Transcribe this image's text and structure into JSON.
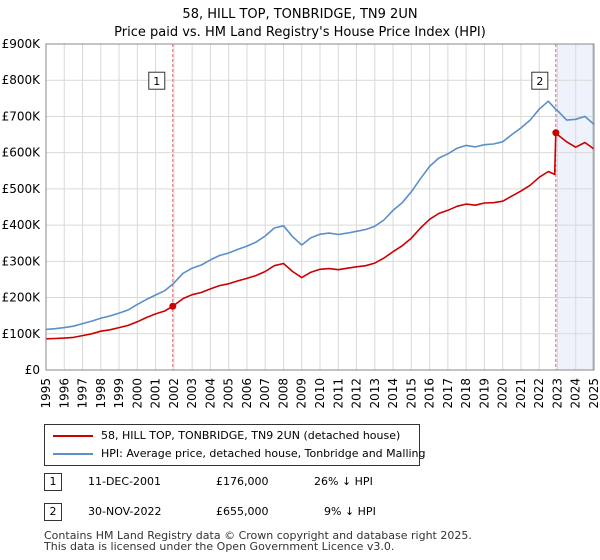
{
  "title_line1": "58, HILL TOP, TONBRIDGE, TN9 2UN",
  "title_line2": "Price paid vs. HM Land Registry's House Price Index (HPI)",
  "legend": {
    "property": "58, HILL TOP, TONBRIDGE, TN9 2UN (detached house)",
    "hpi": "HPI: Average price, detached house, Tonbridge and Malling"
  },
  "sales": [
    {
      "num": "1",
      "date": "11-DEC-2001",
      "price": "£176,000",
      "diff": "26% ↓ HPI"
    },
    {
      "num": "2",
      "date": "30-NOV-2022",
      "price": "£655,000",
      "diff": "9% ↓ HPI"
    }
  ],
  "footer": {
    "line1": "Contains HM Land Registry data © Crown copyright and database right 2025.",
    "line2": "This data is licensed under the Open Government Licence v3.0."
  },
  "colors": {
    "property": "#cc0000",
    "hpi": "#5b8fc9",
    "sale_line": "#e06666",
    "shade": "#dde6f6",
    "grid": "#d9d9d9"
  },
  "chart_data": {
    "type": "line",
    "x_ticks": [
      "1995",
      "1996",
      "1997",
      "1998",
      "1999",
      "2000",
      "2001",
      "2002",
      "2003",
      "2004",
      "2005",
      "2006",
      "2007",
      "2008",
      "2009",
      "2010",
      "2011",
      "2012",
      "2013",
      "2014",
      "2015",
      "2016",
      "2017",
      "2018",
      "2019",
      "2020",
      "2021",
      "2022",
      "2023",
      "2024",
      "2025"
    ],
    "y_ticks": [
      0,
      100000,
      200000,
      300000,
      400000,
      500000,
      600000,
      700000,
      800000,
      900000
    ],
    "y_tick_labels": [
      "£0",
      "£100K",
      "£200K",
      "£300K",
      "£400K",
      "£500K",
      "£600K",
      "£700K",
      "£800K",
      "£900K"
    ],
    "xlim": [
      1995,
      2025
    ],
    "ylim": [
      0,
      900000
    ],
    "sales": [
      {
        "label": "1",
        "x": 2001.94,
        "y": 176000
      },
      {
        "label": "2",
        "x": 2022.91,
        "y": 655000
      }
    ],
    "series": [
      {
        "name": "HPI: Average price, detached house, Tonbridge and Malling",
        "x": [
          1995,
          1995.5,
          1996,
          1996.5,
          1997,
          1997.5,
          1998,
          1998.5,
          1999,
          1999.5,
          2000,
          2000.5,
          2001,
          2001.5,
          2002,
          2002.5,
          2003,
          2003.5,
          2004,
          2004.5,
          2005,
          2005.5,
          2006,
          2006.5,
          2007,
          2007.5,
          2008,
          2008.5,
          2009,
          2009.5,
          2010,
          2010.5,
          2011,
          2011.5,
          2012,
          2012.5,
          2013,
          2013.5,
          2014,
          2014.5,
          2015,
          2015.5,
          2016,
          2016.5,
          2017,
          2017.5,
          2018,
          2018.5,
          2019,
          2019.5,
          2020,
          2020.5,
          2021,
          2021.5,
          2022,
          2022.5,
          2022.9,
          2023,
          2023.5,
          2024,
          2024.5,
          2025
        ],
        "y": [
          112000,
          114000,
          117000,
          121000,
          128000,
          135000,
          143000,
          149000,
          157000,
          166000,
          181000,
          195000,
          207000,
          219000,
          240000,
          267000,
          281000,
          290000,
          304000,
          316000,
          323000,
          333000,
          342000,
          353000,
          370000,
          392000,
          398000,
          368000,
          345000,
          365000,
          375000,
          378000,
          374000,
          378000,
          383000,
          388000,
          397000,
          414000,
          441000,
          462000,
          492000,
          528000,
          562000,
          585000,
          597000,
          612000,
          620000,
          616000,
          622000,
          624000,
          630000,
          650000,
          668000,
          690000,
          720000,
          742000,
          720000,
          716000,
          690000,
          692000,
          700000,
          678000
        ]
      },
      {
        "name": "58, HILL TOP, TONBRIDGE, TN9 2UN (detached house)",
        "x": [
          1995,
          1995.5,
          1996,
          1996.5,
          1997,
          1997.5,
          1998,
          1998.5,
          1999,
          1999.5,
          2000,
          2000.5,
          2001,
          2001.5,
          2001.94,
          2002.5,
          2003,
          2003.5,
          2004,
          2004.5,
          2005,
          2005.5,
          2006,
          2006.5,
          2007,
          2007.5,
          2008,
          2008.5,
          2009,
          2009.5,
          2010,
          2010.5,
          2011,
          2011.5,
          2012,
          2012.5,
          2013,
          2013.5,
          2014,
          2014.5,
          2015,
          2015.5,
          2016,
          2016.5,
          2017,
          2017.5,
          2018,
          2018.5,
          2019,
          2019.5,
          2020,
          2020.5,
          2021,
          2021.5,
          2022,
          2022.5,
          2022.85,
          2022.91,
          2023,
          2023.5,
          2024,
          2024.5,
          2025
        ],
        "y": [
          86000,
          87000,
          88000,
          90000,
          95000,
          100000,
          107000,
          111000,
          117000,
          123000,
          133000,
          145000,
          155000,
          163000,
          176000,
          197000,
          208000,
          214000,
          224000,
          233000,
          238000,
          246000,
          253000,
          261000,
          272000,
          288000,
          294000,
          272000,
          255000,
          270000,
          278000,
          280000,
          277000,
          281000,
          285000,
          288000,
          295000,
          309000,
          327000,
          343000,
          364000,
          392000,
          416000,
          432000,
          441000,
          452000,
          458000,
          455000,
          461000,
          462000,
          466000,
          480000,
          494000,
          510000,
          532000,
          548000,
          540000,
          655000,
          650000,
          630000,
          615000,
          628000,
          610000
        ]
      }
    ]
  }
}
